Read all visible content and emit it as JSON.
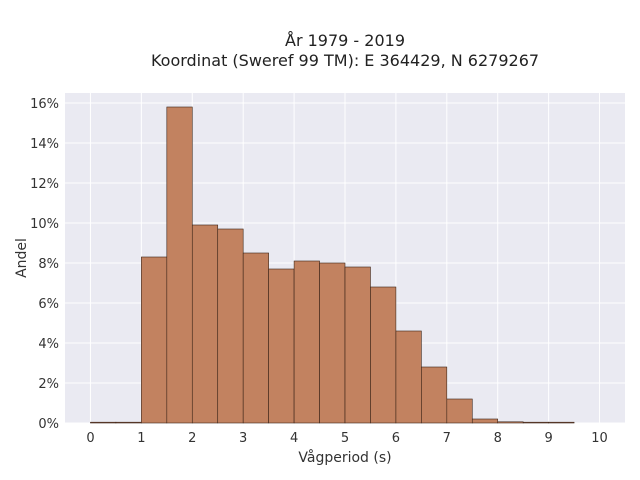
{
  "chart_data": {
    "type": "bar",
    "title": "År 1979 - 2019",
    "subtitle": "Koordinat (Sweref 99 TM): E 364429, N 6279267",
    "xlabel": "Vågperiod (s)",
    "ylabel": "Andel",
    "xlim": [
      -0.5,
      10.5
    ],
    "ylim": [
      0,
      0.165
    ],
    "xticks": [
      0,
      1,
      2,
      3,
      4,
      5,
      6,
      7,
      8,
      9,
      10
    ],
    "yticks": [
      0,
      0.02,
      0.04,
      0.06,
      0.08,
      0.1,
      0.12,
      0.14,
      0.16
    ],
    "ytick_labels": [
      "0%",
      "2%",
      "4%",
      "6%",
      "8%",
      "10%",
      "12%",
      "14%",
      "16%"
    ],
    "bin_width": 0.5,
    "bins": [
      {
        "start": 0.0,
        "value": 0.0002
      },
      {
        "start": 0.5,
        "value": 0.0
      },
      {
        "start": 1.0,
        "value": 0.083
      },
      {
        "start": 1.5,
        "value": 0.158
      },
      {
        "start": 2.0,
        "value": 0.099
      },
      {
        "start": 2.5,
        "value": 0.097
      },
      {
        "start": 3.0,
        "value": 0.085
      },
      {
        "start": 3.5,
        "value": 0.077
      },
      {
        "start": 4.0,
        "value": 0.081
      },
      {
        "start": 4.5,
        "value": 0.08
      },
      {
        "start": 5.0,
        "value": 0.078
      },
      {
        "start": 5.5,
        "value": 0.068
      },
      {
        "start": 6.0,
        "value": 0.046
      },
      {
        "start": 6.5,
        "value": 0.028
      },
      {
        "start": 7.0,
        "value": 0.012
      },
      {
        "start": 7.5,
        "value": 0.002
      },
      {
        "start": 8.0,
        "value": 0.0006
      },
      {
        "start": 8.5,
        "value": 0.0002
      },
      {
        "start": 9.0,
        "value": 0.0001
      }
    ],
    "grid": true,
    "colors": {
      "bar_fill": "#c07c57",
      "bar_edge": "#3b2418",
      "plot_bg": "#eaeaf2",
      "grid": "#ffffff"
    }
  }
}
